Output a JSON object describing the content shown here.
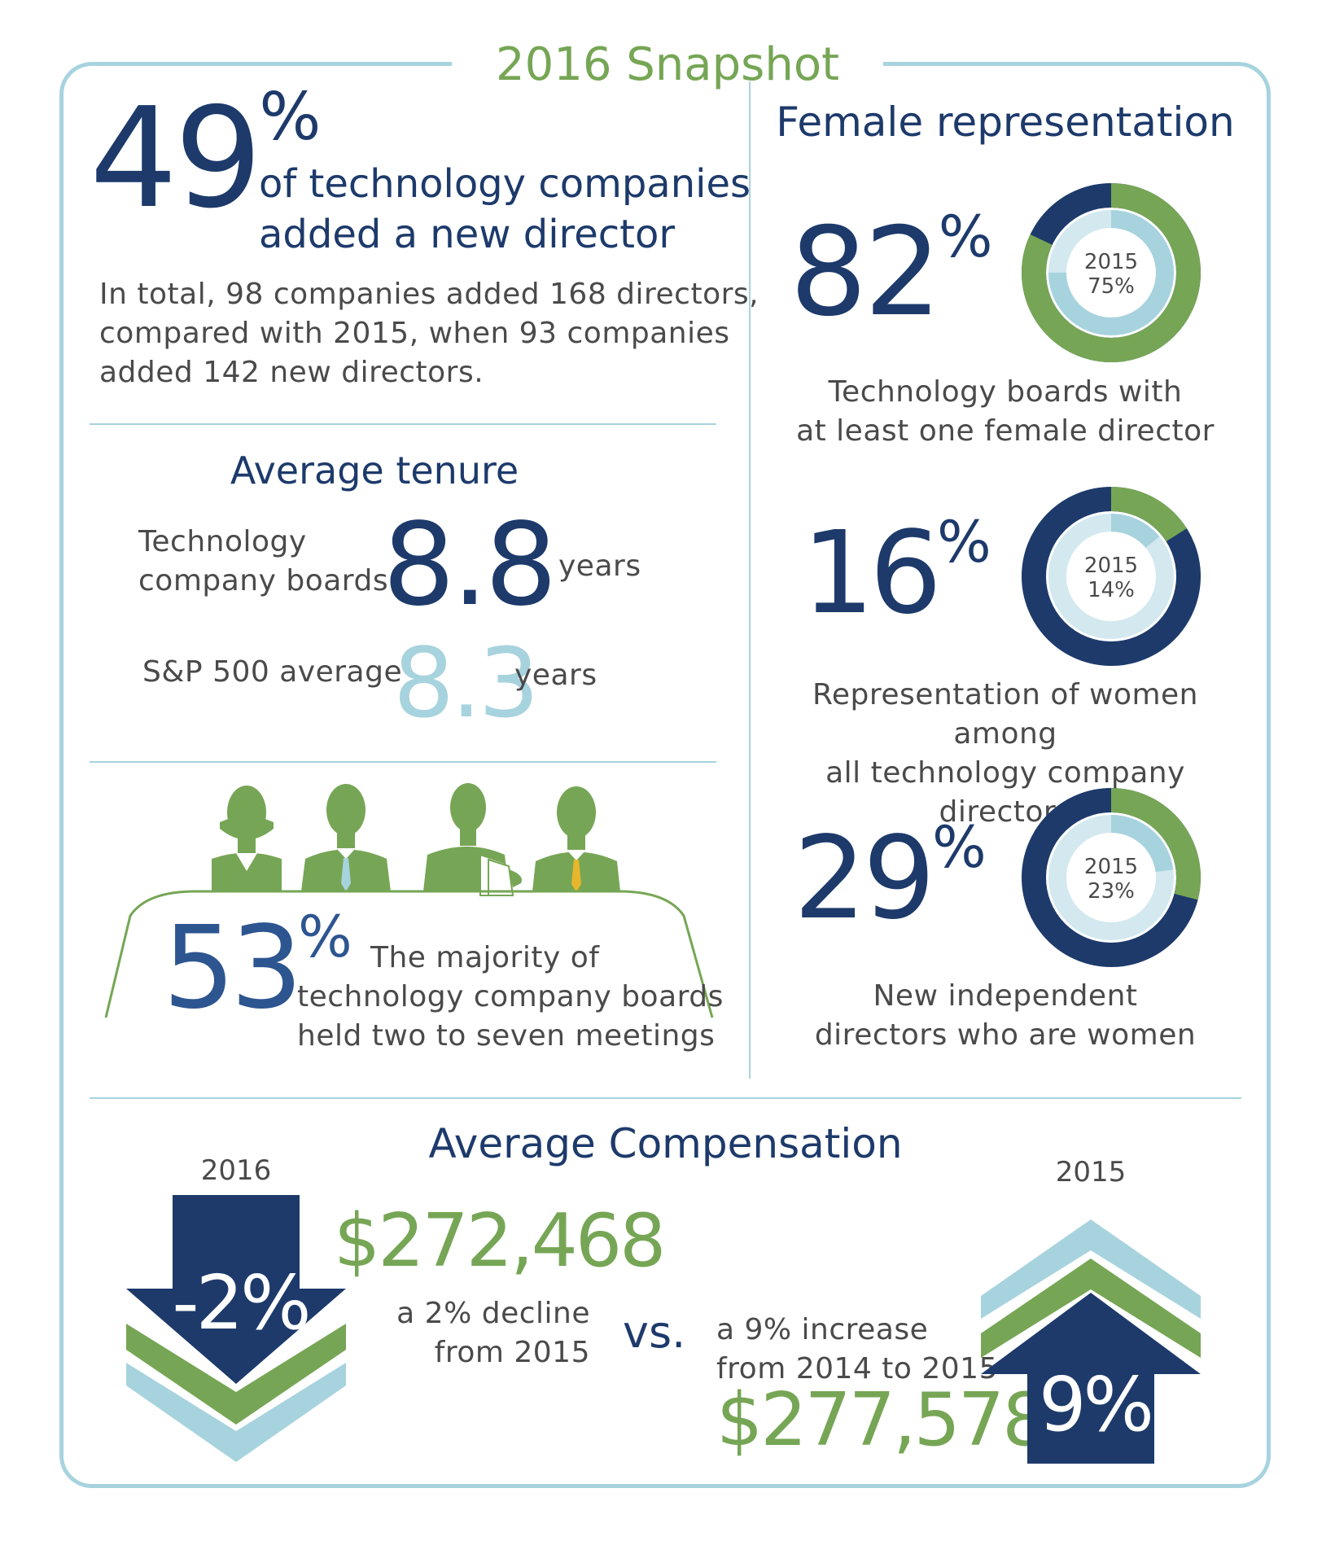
{
  "title": "2016 Snapshot",
  "new_director": {
    "percent": "49",
    "percent_sign": "%",
    "headline_line1": "of technology companies",
    "headline_line2": "added a new director",
    "detail_line1": "In total, 98 companies added 168 directors,",
    "detail_line2": "compared with 2015, when 93 companies",
    "detail_line3": "added 142 new directors."
  },
  "tenure": {
    "heading": "Average tenure",
    "tech_label_line1": "Technology",
    "tech_label_line2": "company boards",
    "tech_value": "8.8",
    "tech_unit": "years",
    "sp_label": "S&P 500 average",
    "sp_value": "8.3",
    "sp_unit": "years"
  },
  "meetings": {
    "percent": "53",
    "percent_sign": "%",
    "text_line1": "The majority of",
    "text_line2": "technology company boards",
    "text_line3": "held two to seven meetings"
  },
  "female": {
    "heading": "Female representation",
    "items": [
      {
        "percent": "82",
        "percent_sign": "%",
        "current_fraction": 0.82,
        "prev_fraction": 0.75,
        "year_label": "2015",
        "prev_label": "75%",
        "caption_line1": "Technology boards with",
        "caption_line2": "at least one female director"
      },
      {
        "percent": "16",
        "percent_sign": "%",
        "current_fraction": 0.16,
        "prev_fraction": 0.14,
        "year_label": "2015",
        "prev_label": "14%",
        "caption_line1": "Representation of women among",
        "caption_line2": "all technology company directors"
      },
      {
        "percent": "29",
        "percent_sign": "%",
        "current_fraction": 0.29,
        "prev_fraction": 0.23,
        "year_label": "2015",
        "prev_label": "23%",
        "caption_line1": "New independent",
        "caption_line2": "directors who are women"
      }
    ]
  },
  "compensation": {
    "heading": "Average Compensation",
    "y2016_label": "2016",
    "y2016_arrow": "-2%",
    "y2016_amount": "$272,468",
    "y2016_desc_line1": "a 2% decline",
    "y2016_desc_line2": "from 2015",
    "vs": "vs.",
    "y2015_label": "2015",
    "y2015_arrow": "9%",
    "y2015_desc_line1": "a 9% increase",
    "y2015_desc_line2": "from 2014 to 2015",
    "y2015_amount": "$277,578"
  },
  "colors": {
    "navy": "#1d3a6b",
    "green": "#76a655",
    "light_blue": "#a7d3de",
    "pale_blue": "#d3e9ef"
  }
}
